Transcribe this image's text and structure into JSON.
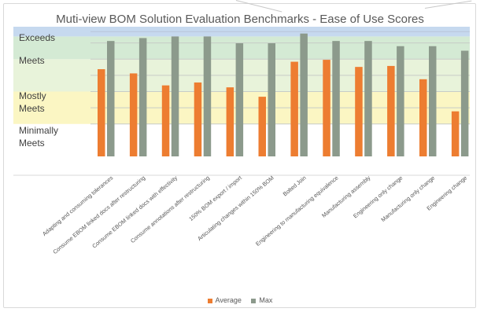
{
  "chart_data": {
    "type": "bar",
    "title": "Muti-view BOM Solution Evaluation Benchmarks - Ease of Use Scores",
    "xlabel": "",
    "ylabel": "",
    "ylim": [
      0,
      4
    ],
    "grid": true,
    "legend_position": "bottom",
    "bands": [
      {
        "label": "Minimally Meets",
        "from": 1,
        "to": 2,
        "color": "#fbf6c3"
      },
      {
        "label": "Mostly Meets",
        "from": 2,
        "to": 3,
        "color": "#e8f3da"
      },
      {
        "label": "Meets",
        "from": 3,
        "to": 3.7,
        "color": "#d4ead4"
      },
      {
        "label": "Exceeds",
        "from": 3.7,
        "to": 4,
        "color": "#c6d9ef"
      }
    ],
    "categories": [
      "Adapting and consuming tolerances",
      "Consume EBOM linked docs after restructuring",
      "Consume EBOM linked docs with effectivity",
      "Consume annotations after restructuring",
      "150% BOM export / import",
      "Articulating changes within 150% BOM",
      "Bolted Join",
      "Engineering to manufacturing equivalence",
      "Manufacturing assembly",
      "Engineering only change",
      "Manufacturing only change",
      "Engineering change"
    ],
    "series": [
      {
        "name": "Average",
        "color": "#ed7d31",
        "values": [
          2.69,
          2.56,
          2.19,
          2.28,
          2.13,
          1.84,
          2.92,
          2.98,
          2.76,
          2.79,
          2.38,
          1.39
        ]
      },
      {
        "name": "Max",
        "color": "#8c9a8c",
        "values": [
          3.56,
          3.65,
          3.7,
          3.7,
          3.49,
          3.49,
          3.79,
          3.56,
          3.56,
          3.4,
          3.4,
          3.26
        ]
      }
    ]
  }
}
